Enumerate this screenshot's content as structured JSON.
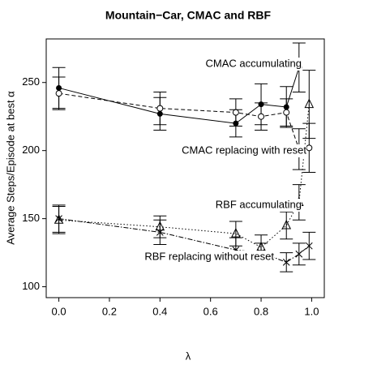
{
  "chart_data": {
    "type": "line",
    "title": "Mountain−Car, CMAC and RBF",
    "x_label": "λ",
    "y_label": "Average Steps/Episode at best α",
    "x": [
      0,
      0.4,
      0.7,
      0.8,
      0.9,
      0.95,
      0.99
    ],
    "xlim": [
      -0.05,
      1.05
    ],
    "xticks": [
      {
        "value": 0,
        "label": "0.0"
      },
      0.2,
      0.4,
      0.6,
      0.8,
      {
        "value": 1,
        "label": "1.0"
      }
    ],
    "ylim": [
      92,
      282
    ],
    "yticks": [
      100,
      150,
      200,
      250
    ],
    "grid": false,
    "series": [
      {
        "name": "CMAC accumulating",
        "color": "#000000",
        "dash": "solid",
        "marker": "filled-circle",
        "values": [
          246,
          227,
          220,
          234,
          232,
          261,
          null
        ],
        "errors": [
          15,
          12,
          10,
          15,
          15,
          18,
          null
        ]
      },
      {
        "name": "CMAC replacing with reset",
        "color": "#000000",
        "dash": "dashed",
        "marker": "open-circle",
        "values": [
          242,
          231,
          228,
          225,
          228,
          201,
          202
        ],
        "errors": [
          12,
          12,
          10,
          10,
          10,
          15,
          18
        ]
      },
      {
        "name": "RBF accumulating",
        "color": "#000000",
        "dash": "dotted",
        "marker": "triangle",
        "values": [
          149,
          144,
          139,
          129,
          145,
          162,
          234
        ],
        "errors": [
          10,
          8,
          9,
          9,
          10,
          13,
          25
        ]
      },
      {
        "name": "RBF replacing without reset",
        "color": "#000000",
        "dash": "dashdot",
        "marker": "cross",
        "values": [
          150,
          140,
          127,
          125,
          118,
          124,
          130
        ],
        "errors": [
          10,
          9,
          9,
          7,
          7,
          8,
          10
        ]
      }
    ]
  }
}
